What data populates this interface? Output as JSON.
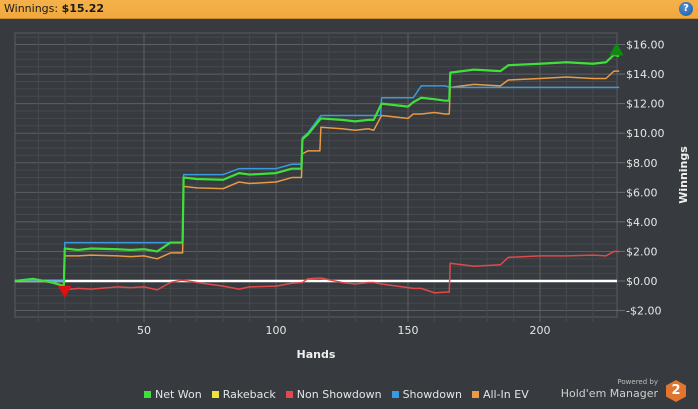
{
  "header": {
    "title_label": "Winnings:",
    "title_value": "$15.22",
    "help_icon": "?"
  },
  "chart_data": {
    "type": "line",
    "title": "Winnings: $15.22",
    "xlabel": "Hands",
    "ylabel": "Winnings",
    "xlim": [
      1,
      230
    ],
    "ylim": [
      -2.5,
      16.8
    ],
    "x_ticks": [
      50,
      100,
      150,
      200
    ],
    "y_ticks": [
      "$16.00",
      "$14.00",
      "$12.00",
      "$10.00",
      "$8.00",
      "$6.00",
      "$4.00",
      "$2.00",
      "$0.00",
      "-$2.00"
    ],
    "grid": true,
    "legend_position": "bottom",
    "x": [
      1,
      8,
      15,
      19,
      20,
      25,
      30,
      40,
      45,
      50,
      55,
      60,
      64,
      65,
      70,
      80,
      86,
      90,
      100,
      106,
      110,
      112,
      117,
      125,
      130,
      135,
      137,
      140,
      150,
      152,
      155,
      160,
      164,
      166,
      175,
      185,
      188,
      200,
      210,
      220,
      225,
      228,
      230
    ],
    "series": [
      {
        "name": "Net Won",
        "color": "#3fe03a",
        "values": [
          0.0,
          0.15,
          -0.1,
          -0.3,
          2.2,
          2.1,
          2.2,
          2.15,
          2.1,
          2.15,
          2.0,
          2.6,
          2.6,
          7.0,
          6.9,
          6.85,
          7.3,
          7.2,
          7.3,
          7.6,
          9.6,
          9.9,
          11.0,
          10.9,
          10.8,
          10.9,
          10.9,
          12.0,
          11.8,
          12.1,
          12.4,
          12.3,
          12.2,
          14.1,
          14.3,
          14.2,
          14.6,
          14.7,
          14.8,
          14.7,
          14.8,
          15.3,
          15.22
        ]
      },
      {
        "name": "Rakeback",
        "color": "#f0e23a",
        "values": [
          0.0,
          0.0,
          0.0,
          0.0,
          0.0,
          0.0,
          0.0,
          0.0,
          0.0,
          0.0,
          0.0,
          0.0,
          0.0,
          0.0,
          0.0,
          0.0,
          0.0,
          0.0,
          0.0,
          0.0,
          0.0,
          0.0,
          0.0,
          0.0,
          0.0,
          0.0,
          0.0,
          0.0,
          0.0,
          0.0,
          0.0,
          0.0,
          0.0,
          0.0,
          0.0,
          0.0,
          0.0,
          0.0,
          0.0,
          0.0,
          0.0,
          0.0,
          0.0
        ]
      },
      {
        "name": "Non Showdown",
        "color": "#e04a4a",
        "values": [
          0.0,
          0.1,
          -0.1,
          -0.3,
          -0.6,
          -0.5,
          -0.55,
          -0.4,
          -0.45,
          -0.4,
          -0.6,
          -0.1,
          0.05,
          0.05,
          -0.1,
          -0.35,
          -0.55,
          -0.4,
          -0.35,
          -0.15,
          -0.1,
          0.15,
          0.2,
          -0.1,
          -0.2,
          -0.1,
          -0.1,
          -0.2,
          -0.45,
          -0.5,
          -0.5,
          -0.8,
          -0.75,
          1.2,
          1.0,
          1.1,
          1.6,
          1.7,
          1.7,
          1.75,
          1.7,
          2.0,
          2.0
        ]
      },
      {
        "name": "Showdown",
        "color": "#3a9ae0",
        "values": [
          0.0,
          0.0,
          0.0,
          0.0,
          2.6,
          2.6,
          2.6,
          2.6,
          2.6,
          2.6,
          2.6,
          2.6,
          2.6,
          7.2,
          7.2,
          7.2,
          7.6,
          7.6,
          7.6,
          7.9,
          9.7,
          10.0,
          11.2,
          11.2,
          11.2,
          11.2,
          11.2,
          12.4,
          12.4,
          12.4,
          13.2,
          13.2,
          13.2,
          13.1,
          13.1,
          13.1,
          13.1,
          13.1,
          13.1,
          13.1,
          13.1,
          13.1,
          13.1
        ]
      },
      {
        "name": "All-In EV",
        "color": "#e89a45",
        "values": [
          0.0,
          0.1,
          -0.1,
          -0.3,
          1.7,
          1.7,
          1.75,
          1.7,
          1.65,
          1.7,
          1.5,
          1.9,
          1.9,
          6.4,
          6.3,
          6.25,
          6.7,
          6.6,
          6.7,
          7.0,
          8.6,
          8.8,
          10.4,
          10.3,
          10.2,
          10.3,
          10.2,
          11.2,
          11.0,
          11.3,
          11.3,
          11.4,
          11.3,
          13.1,
          13.3,
          13.2,
          13.6,
          13.7,
          13.8,
          13.7,
          13.7,
          14.2,
          14.2
        ]
      }
    ],
    "markers": [
      {
        "type": "min",
        "shape": "triangle-down",
        "color": "#e01010",
        "x": 20,
        "y": -0.6
      },
      {
        "type": "max",
        "shape": "triangle-up",
        "color": "#108a10",
        "x": 229,
        "y": 15.6
      }
    ]
  },
  "legend": [
    {
      "label": "Net Won",
      "color": "#3fe03a"
    },
    {
      "label": "Rakeback",
      "color": "#f0e23a"
    },
    {
      "label": "Non Showdown",
      "color": "#e04a4a"
    },
    {
      "label": "Showdown",
      "color": "#3a9ae0"
    },
    {
      "label": "All-In EV",
      "color": "#e89a45"
    }
  ],
  "branding": {
    "powered_by": "Powered by",
    "product": "Hold'em Manager",
    "logo_text": "2"
  }
}
